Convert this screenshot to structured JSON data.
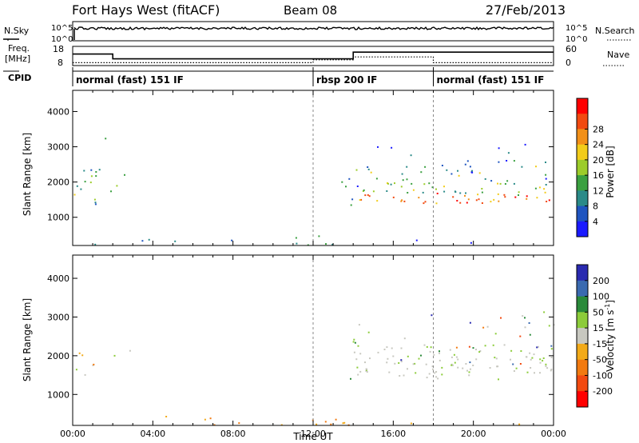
{
  "header": {
    "title": "Fort Hays West (fitACF)",
    "beam": "Beam 08",
    "date": "27/Feb/2013"
  },
  "labels": {
    "nsky": "N.Sky",
    "nsearch": "N.Search",
    "freq_line1": "Freq.",
    "freq_line2": "[MHz]",
    "nave": "Nave",
    "cpid": "CPID"
  },
  "noise_axis": {
    "left_ticks": [
      "10^5",
      "10^0"
    ],
    "right_ticks": [
      "10^5",
      "10^0"
    ]
  },
  "freq_axis": {
    "left_ticks": [
      "18",
      "8"
    ],
    "right_ticks": [
      "60",
      "0"
    ]
  },
  "modes": [
    {
      "label": "normal (fast) 151 IF",
      "start": 0,
      "end": 12
    },
    {
      "label": "rbsp 200 IF",
      "start": 12,
      "end": 18
    },
    {
      "label": "normal (fast) 151 IF",
      "start": 18,
      "end": 24
    }
  ],
  "freq_series": {
    "solid": [
      [
        0,
        14
      ],
      [
        2,
        14
      ],
      [
        2,
        11.5
      ],
      [
        12,
        11.5
      ],
      [
        14,
        11.5
      ],
      [
        14,
        15
      ],
      [
        24,
        15
      ]
    ],
    "dotted": [
      [
        0,
        9.5
      ],
      [
        12,
        9.5
      ],
      [
        12,
        11
      ],
      [
        14,
        11
      ],
      [
        14,
        12.5
      ],
      [
        18,
        12.5
      ],
      [
        18,
        9.5
      ],
      [
        24,
        9.5
      ]
    ]
  },
  "chart_data": [
    {
      "type": "heatmap",
      "name": "power",
      "ylabel": "Slant Range [km]",
      "xlabel": "",
      "xlim": [
        0,
        24
      ],
      "ylim": [
        200,
        4600
      ],
      "yticks": [
        "1000",
        "2000",
        "3000",
        "4000"
      ],
      "colorbar": {
        "label": "Power [dB]",
        "ticks": [
          "4",
          "8",
          "12",
          "16",
          "20",
          "24",
          "28"
        ],
        "colors": [
          "#1a1aff",
          "#1f55c0",
          "#2a8a88",
          "#3aa040",
          "#9ccc2a",
          "#f2cc1a",
          "#f29018",
          "#f24a10",
          "#ff0000"
        ]
      }
    },
    {
      "type": "heatmap",
      "name": "velocity",
      "ylabel": "Slant Range [km]",
      "xlabel": "Time UT",
      "xlim": [
        0,
        24
      ],
      "ylim": [
        200,
        4600
      ],
      "yticks": [
        "1000",
        "2000",
        "3000",
        "4000"
      ],
      "xticks": [
        "00:00",
        "04:00",
        "08:00",
        "12:00",
        "16:00",
        "20:00",
        "00:00"
      ],
      "colorbar": {
        "label": "Velocity [m s",
        "label_sup": "-1",
        "label_end": "]",
        "ticks": [
          "200",
          "100",
          "50",
          "15",
          "-15",
          "-50",
          "-100",
          "-200"
        ],
        "colors": [
          "#2a2ab0",
          "#3a6ab0",
          "#2a8a3a",
          "#8ccc3a",
          "#c8c8c0",
          "#f2aa18",
          "#f27a10",
          "#f24a10",
          "#ff0000"
        ]
      }
    }
  ]
}
